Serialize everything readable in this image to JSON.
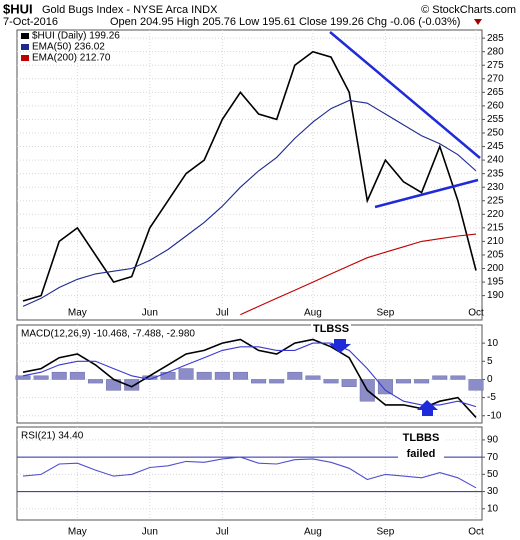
{
  "chart_data": [
    {
      "type": "line",
      "title": "$HUI",
      "subtitle": "Gold Bugs Index - NYSE Arca INDX",
      "source": "© StockCharts.com",
      "date": "7-Oct-2016",
      "quote": "Open 204.95 High 205.76 Low 195.61 Close 199.26 Chg -0.06 (-0.03%)",
      "categories": [
        null,
        null,
        null,
        "May",
        null,
        null,
        null,
        "Jun",
        null,
        null,
        null,
        "Jul",
        null,
        null,
        null,
        null,
        "Aug",
        null,
        null,
        null,
        "Sep",
        null,
        null,
        null,
        null,
        "Oct"
      ],
      "series": [
        {
          "name": "$HUI (Daily) 199.26",
          "color": "#000000",
          "values": [
            188,
            190,
            210,
            215,
            205,
            195,
            197,
            215,
            225,
            235,
            240,
            255,
            265,
            257,
            255,
            275,
            280,
            278,
            265,
            225,
            240,
            232,
            228,
            245,
            225,
            199.26
          ]
        },
        {
          "name": "EMA(50) 236.02",
          "color": "#1f2a8f",
          "values": [
            186,
            189,
            193,
            196,
            198,
            199,
            200,
            203,
            207,
            212,
            217,
            223,
            230,
            236,
            241,
            248,
            254,
            259,
            262,
            261,
            257,
            253,
            249,
            246,
            242,
            236.02
          ]
        },
        {
          "name": "EMA(200) 212.70",
          "color": "#c00000",
          "values": [
            null,
            null,
            null,
            null,
            null,
            null,
            null,
            null,
            null,
            null,
            null,
            null,
            183,
            186,
            189,
            192,
            195,
            198,
            201,
            204,
            206,
            208,
            210,
            211,
            212,
            212.7
          ]
        }
      ],
      "ylim": [
        181,
        288
      ],
      "yticks": [
        190,
        195,
        200,
        205,
        210,
        215,
        220,
        225,
        230,
        235,
        240,
        245,
        250,
        255,
        260,
        265,
        270,
        275,
        280,
        285
      ],
      "grid": true
    },
    {
      "type": "macd",
      "label": "MACD(12,26,9) -10.468, -7.488, -2.980",
      "annotations": [
        "TLBSS",
        "TLBBS",
        "failed"
      ],
      "series": [
        {
          "style": "histogram",
          "color": "#8c8cc8",
          "values": [
            1,
            1,
            2,
            2,
            -1,
            -3,
            -3,
            1,
            2,
            3,
            2,
            2,
            2,
            -1,
            -1,
            2,
            1,
            -1,
            -2,
            -6,
            -4,
            -1,
            -1,
            1,
            1,
            -2.98
          ]
        },
        {
          "style": "line",
          "color": "#000000",
          "values": [
            2,
            3,
            6,
            7,
            4,
            0,
            -2,
            1,
            4,
            7,
            8,
            10,
            11,
            8,
            7,
            10,
            11,
            9,
            6,
            -3,
            -7,
            -7,
            -8,
            -6,
            -5,
            -10.468
          ]
        },
        {
          "style": "line",
          "color": "#3a3ad0",
          "values": [
            1,
            2,
            4,
            5,
            5,
            3,
            1,
            0,
            2,
            4,
            6,
            8,
            9,
            9,
            8,
            8,
            10,
            10,
            8,
            3,
            -3,
            -6,
            -7,
            -7,
            -6,
            -7.488
          ]
        }
      ],
      "ylim": [
        -12,
        15
      ],
      "yticks": [
        -10,
        -5,
        0,
        5,
        10
      ],
      "grid": true
    },
    {
      "type": "line",
      "label": "RSI(21) 34.40",
      "categories": [
        null,
        null,
        null,
        "May",
        null,
        null,
        null,
        "Jun",
        null,
        null,
        null,
        "Jul",
        null,
        null,
        null,
        null,
        "Aug",
        null,
        null,
        null,
        "Sep",
        null,
        null,
        null,
        null,
        "Oct"
      ],
      "series": [
        {
          "color": "#5050d0",
          "values": [
            48,
            50,
            62,
            63,
            55,
            48,
            50,
            58,
            60,
            65,
            64,
            68,
            70,
            63,
            62,
            67,
            68,
            64,
            57,
            44,
            50,
            48,
            46,
            52,
            46,
            34.4
          ]
        }
      ],
      "ref_lines": [
        70,
        30
      ],
      "ref_color": "#2a2ab0",
      "ylim": [
        -3,
        105
      ],
      "yticks": [
        10,
        30,
        50,
        70,
        90
      ],
      "grid": true
    }
  ]
}
